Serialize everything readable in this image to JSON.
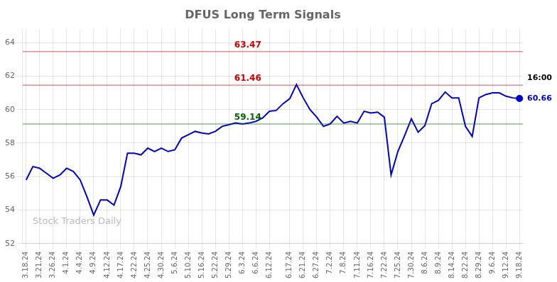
{
  "chart_data": {
    "type": "line",
    "title": "DFUS Long Term Signals",
    "categories": [
      "3.18.24",
      null,
      "3.21.24",
      null,
      "3.26.24",
      null,
      "4.1.24",
      null,
      "4.4.24",
      null,
      "4.9.24",
      null,
      "4.12.24",
      null,
      "4.17.24",
      null,
      "4.22.24",
      null,
      "4.25.24",
      null,
      "4.30.24",
      null,
      "5.6.24",
      null,
      "5.10.24",
      null,
      "5.16.24",
      null,
      "5.22.24",
      null,
      "5.29.24",
      null,
      "6.3.24",
      null,
      "6.6.24",
      null,
      "6.12.24",
      null,
      null,
      "6.17.24",
      null,
      "6.21.24",
      null,
      "6.27.24",
      null,
      "7.2.24",
      null,
      "7.8.24",
      null,
      "7.11.24",
      null,
      "7.16.24",
      null,
      "7.22.24",
      null,
      "7.25.24",
      null,
      "7.30.24",
      null,
      "8.6.24",
      null,
      "8.9.24",
      null,
      "8.14.24",
      null,
      "8.22.24",
      null,
      "8.29.24",
      null,
      "9.6.24",
      null,
      "9.12.24",
      null,
      "9.18.24"
    ],
    "values": [
      55.8,
      56.6,
      56.5,
      56.2,
      55.9,
      56.1,
      56.5,
      56.3,
      55.8,
      54.8,
      53.7,
      54.6,
      54.6,
      54.3,
      55.4,
      57.4,
      57.4,
      57.3,
      57.7,
      57.5,
      57.7,
      57.5,
      57.6,
      58.3,
      58.5,
      58.7,
      58.6,
      58.55,
      58.7,
      59.0,
      59.1,
      59.2,
      59.14,
      59.2,
      59.3,
      59.5,
      59.9,
      59.95,
      60.35,
      60.65,
      61.5,
      60.7,
      60.0,
      59.55,
      59.0,
      59.15,
      59.6,
      59.2,
      59.3,
      59.2,
      59.9,
      59.8,
      59.85,
      59.55,
      56.1,
      57.5,
      58.45,
      59.45,
      58.65,
      59.05,
      60.35,
      60.55,
      61.05,
      60.7,
      60.7,
      59.0,
      58.4,
      60.7,
      60.9,
      61.0,
      61.0,
      60.8,
      60.7,
      60.66
    ],
    "color": "#0000cc",
    "ylim": [
      52,
      64.8
    ],
    "yticks": [
      52,
      54,
      56,
      58,
      60,
      62,
      64
    ],
    "grid": true,
    "annotations": [
      {
        "type": "hline",
        "y": 63.47,
        "text": "63.47",
        "color": "#cc0000"
      },
      {
        "type": "hline",
        "y": 61.46,
        "text": "61.46",
        "color": "#cc0000"
      },
      {
        "type": "hline",
        "y": 59.14,
        "text": "59.14",
        "color": "#006600"
      },
      {
        "type": "end",
        "y": 61.46,
        "text": "16:00",
        "color": "#000000"
      },
      {
        "type": "end",
        "y": 60.66,
        "text": "60.66",
        "color": "#0000cc"
      },
      {
        "type": "watermark",
        "text": "Stock Traders Daily",
        "color": "#bbbbbb"
      }
    ]
  }
}
